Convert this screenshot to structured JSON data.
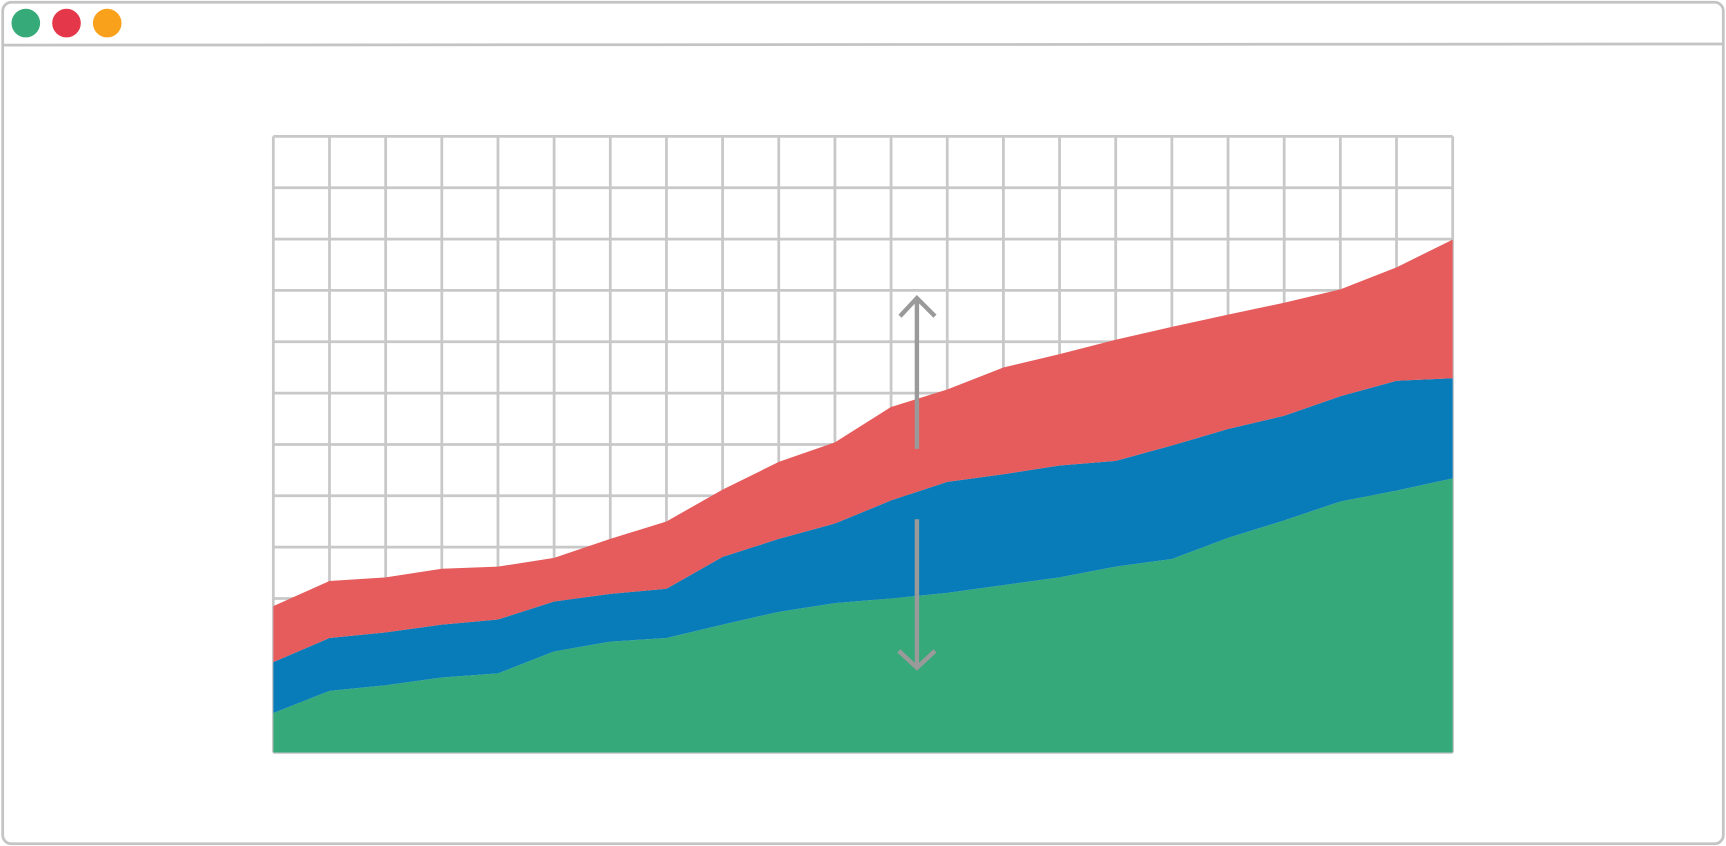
{
  "chart_data": {
    "type": "stacked-area",
    "x": [
      0,
      1,
      2,
      3,
      4,
      5,
      6,
      7,
      8,
      9,
      10,
      11,
      12,
      13,
      14,
      15,
      16,
      17,
      18,
      19,
      20,
      21
    ],
    "series": [
      {
        "color": "#36a97b",
        "values": [
          0.77,
          1.2,
          1.31,
          1.46,
          1.54,
          1.97,
          2.16,
          2.23,
          2.49,
          2.74,
          2.91,
          3.0,
          3.11,
          3.26,
          3.41,
          3.62,
          3.77,
          4.18,
          4.52,
          4.89,
          5.1,
          5.34
        ]
      },
      {
        "color": "#077cb9",
        "values": [
          0.99,
          1.03,
          1.03,
          1.03,
          1.05,
          0.97,
          0.93,
          0.96,
          1.32,
          1.42,
          1.55,
          1.91,
          2.16,
          2.16,
          2.18,
          2.06,
          2.21,
          2.12,
          2.04,
          2.05,
          2.14,
          1.95
        ]
      },
      {
        "color": "#e65b5b",
        "values": [
          1.09,
          1.11,
          1.07,
          1.09,
          1.03,
          0.85,
          1.07,
          1.31,
          1.31,
          1.5,
          1.58,
          1.82,
          1.8,
          2.08,
          2.17,
          2.36,
          2.31,
          2.23,
          2.2,
          2.08,
          2.21,
          2.7
        ]
      }
    ],
    "xlim": [
      0,
      21
    ],
    "ylim": [
      0,
      12
    ],
    "xticks": [
      0,
      1,
      2,
      3,
      4,
      5,
      6,
      7,
      8,
      9,
      10,
      11,
      12,
      13,
      14,
      15,
      16,
      17,
      18,
      19,
      20,
      21
    ],
    "yticks": [
      0,
      1,
      2,
      3,
      4,
      5,
      6,
      7,
      8,
      9,
      10,
      11,
      12
    ],
    "grid": true
  }
}
